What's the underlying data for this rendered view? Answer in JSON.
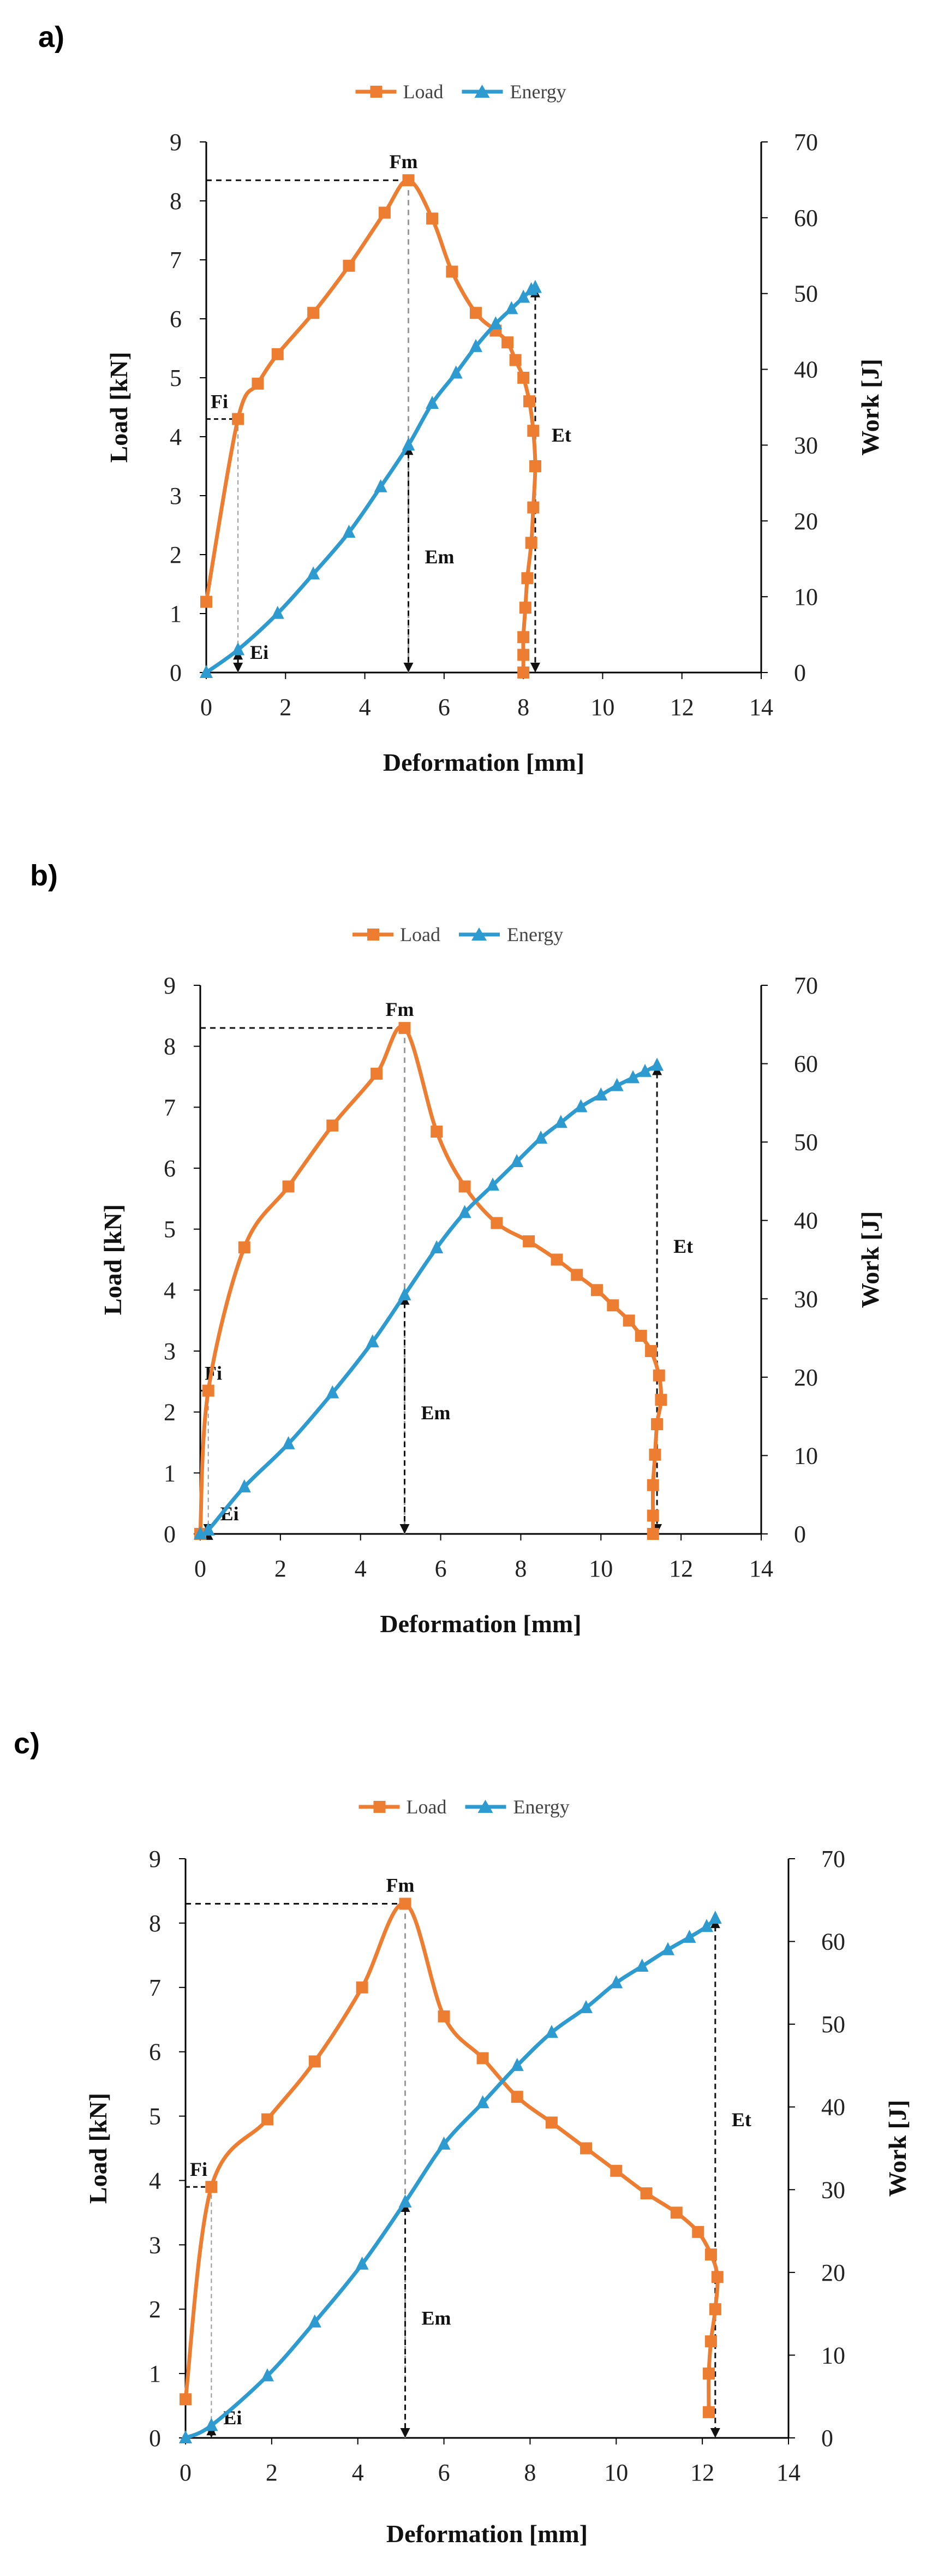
{
  "colors": {
    "load": "#ED7D31",
    "energy": "#2E9BD0",
    "axis": "#000000",
    "guide": "#111111",
    "guide_fm": "#999999"
  },
  "chart_data": [
    {
      "panel": "a)",
      "type": "line",
      "legend": [
        "Load",
        "Energy"
      ],
      "legend_position": "top-center",
      "xlabel": "Deformation [mm]",
      "ylabel": "Load [kN]",
      "y2label": "Work [J]",
      "xlim": [
        0,
        14
      ],
      "xticks": [
        "0",
        "2",
        "4",
        "6",
        "8",
        "10",
        "12",
        "14"
      ],
      "ylim": [
        0,
        9
      ],
      "yticks": [
        "0",
        "1",
        "2",
        "3",
        "4",
        "5",
        "6",
        "7",
        "8",
        "9"
      ],
      "y2lim": [
        0,
        70
      ],
      "y2ticks": [
        "0",
        "10",
        "20",
        "30",
        "40",
        "50",
        "60",
        "70"
      ],
      "series": [
        {
          "name": "Load",
          "axis": "left",
          "marker": "square",
          "x": [
            0,
            0.8,
            1.3,
            1.8,
            2.7,
            3.6,
            4.5,
            5.1,
            5.7,
            6.2,
            6.8,
            7.3,
            7.6,
            7.8,
            8.0,
            8.15,
            8.25,
            8.3,
            8.25,
            8.2,
            8.1,
            8.05,
            8.0,
            8.0,
            8.0
          ],
          "y": [
            1.2,
            4.3,
            4.9,
            5.4,
            6.1,
            6.9,
            7.8,
            8.35,
            7.7,
            6.8,
            6.1,
            5.8,
            5.6,
            5.3,
            5.0,
            4.6,
            4.1,
            3.5,
            2.8,
            2.2,
            1.6,
            1.1,
            0.6,
            0.3,
            0.0
          ]
        },
        {
          "name": "Energy",
          "axis": "right",
          "marker": "triangle",
          "x": [
            0,
            0.8,
            1.8,
            2.7,
            3.6,
            4.4,
            5.1,
            5.7,
            6.3,
            6.8,
            7.3,
            7.7,
            8.0,
            8.2,
            8.3
          ],
          "y": [
            0,
            3,
            7.8,
            13,
            18.5,
            24.5,
            30,
            35.5,
            39.5,
            43,
            46,
            48,
            49.5,
            50.5,
            50.8
          ]
        }
      ],
      "annotations": [
        {
          "text": "Fm",
          "x": 5.1,
          "y": 8.35,
          "axis": "left"
        },
        {
          "text": "Fi",
          "x": 0.8,
          "y": 4.3,
          "axis": "left"
        },
        {
          "text": "Ei",
          "x": 0.8,
          "y": 3,
          "axis": "right"
        },
        {
          "text": "Em",
          "x": 5.1,
          "y": 30,
          "axis": "right"
        },
        {
          "text": "Et",
          "x": 8.3,
          "y": 50.8,
          "axis": "right"
        }
      ]
    },
    {
      "panel": "b)",
      "type": "line",
      "legend": [
        "Load",
        "Energy"
      ],
      "legend_position": "top-center",
      "xlabel": "Deformation [mm]",
      "ylabel": "Load [kN]",
      "y2label": "Work [J]",
      "xlim": [
        0,
        14
      ],
      "xticks": [
        "0",
        "2",
        "4",
        "6",
        "8",
        "10",
        "12",
        "14"
      ],
      "ylim": [
        0,
        9
      ],
      "yticks": [
        "0",
        "1",
        "2",
        "3",
        "4",
        "5",
        "6",
        "7",
        "8",
        "9"
      ],
      "y2lim": [
        0,
        70
      ],
      "y2ticks": [
        "0",
        "10",
        "20",
        "30",
        "40",
        "50",
        "60",
        "70"
      ],
      "series": [
        {
          "name": "Load",
          "axis": "left",
          "marker": "square",
          "x": [
            0,
            0.2,
            1.1,
            2.2,
            3.3,
            4.4,
            5.1,
            5.9,
            6.6,
            7.4,
            8.2,
            8.9,
            9.4,
            9.9,
            10.3,
            10.7,
            11.0,
            11.25,
            11.45,
            11.5,
            11.4,
            11.35,
            11.3,
            11.3,
            11.3
          ],
          "y": [
            0,
            2.35,
            4.7,
            5.7,
            6.7,
            7.55,
            8.3,
            6.6,
            5.7,
            5.1,
            4.8,
            4.5,
            4.25,
            4.0,
            3.75,
            3.5,
            3.25,
            3.0,
            2.6,
            2.2,
            1.8,
            1.3,
            0.8,
            0.3,
            0.0
          ]
        },
        {
          "name": "Energy",
          "axis": "right",
          "marker": "triangle",
          "x": [
            0,
            0.2,
            1.1,
            2.2,
            3.3,
            4.3,
            5.1,
            5.9,
            6.6,
            7.3,
            7.9,
            8.5,
            9.0,
            9.5,
            10.0,
            10.4,
            10.8,
            11.1,
            11.4
          ],
          "y": [
            0,
            0.5,
            6,
            11.5,
            18,
            24.5,
            30.5,
            36.5,
            41,
            44.5,
            47.5,
            50.5,
            52.5,
            54.5,
            56,
            57.2,
            58.2,
            59,
            59.8
          ]
        }
      ],
      "annotations": [
        {
          "text": "Fm",
          "x": 5.1,
          "y": 8.3,
          "axis": "left"
        },
        {
          "text": "Fi",
          "x": 0.2,
          "y": 2.35,
          "axis": "left"
        },
        {
          "text": "Ei",
          "x": 0.2,
          "y": 0.5,
          "axis": "right"
        },
        {
          "text": "Em",
          "x": 5.1,
          "y": 30.5,
          "axis": "right"
        },
        {
          "text": "Et",
          "x": 11.4,
          "y": 59.8,
          "axis": "right"
        }
      ]
    },
    {
      "panel": "c)",
      "type": "line",
      "legend": [
        "Load",
        "Energy"
      ],
      "legend_position": "top-center",
      "xlabel": "Deformation [mm]",
      "ylabel": "Load [kN]",
      "y2label": "Work [J]",
      "xlim": [
        0,
        14
      ],
      "xticks": [
        "0",
        "2",
        "4",
        "6",
        "8",
        "10",
        "12",
        "14"
      ],
      "ylim": [
        0,
        9
      ],
      "yticks": [
        "0",
        "1",
        "2",
        "3",
        "4",
        "5",
        "6",
        "7",
        "8",
        "9"
      ],
      "y2lim": [
        0,
        70
      ],
      "y2ticks": [
        "0",
        "10",
        "20",
        "30",
        "40",
        "50",
        "60",
        "70"
      ],
      "series": [
        {
          "name": "Load",
          "axis": "left",
          "marker": "square",
          "x": [
            0,
            0.6,
            1.9,
            3.0,
            4.1,
            5.1,
            6.0,
            6.9,
            7.7,
            8.5,
            9.3,
            10.0,
            10.7,
            11.4,
            11.9,
            12.2,
            12.35,
            12.3,
            12.2,
            12.15,
            12.15
          ],
          "y": [
            0.6,
            3.9,
            4.95,
            5.85,
            7.0,
            8.3,
            6.55,
            5.9,
            5.3,
            4.9,
            4.5,
            4.15,
            3.8,
            3.5,
            3.2,
            2.85,
            2.5,
            2.0,
            1.5,
            1.0,
            0.4
          ]
        },
        {
          "name": "Energy",
          "axis": "right",
          "marker": "triangle",
          "x": [
            0,
            0.6,
            1.9,
            3.0,
            4.1,
            5.1,
            6.0,
            6.9,
            7.7,
            8.5,
            9.3,
            10.0,
            10.6,
            11.2,
            11.7,
            12.1,
            12.3
          ],
          "y": [
            0,
            1.5,
            7.5,
            14,
            21,
            28.5,
            35.5,
            40.5,
            45,
            49,
            52,
            55,
            57,
            59,
            60.5,
            61.8,
            62.8
          ]
        }
      ],
      "annotations": [
        {
          "text": "Fm",
          "x": 5.1,
          "y": 8.3,
          "axis": "left"
        },
        {
          "text": "Fi",
          "x": 0.6,
          "y": 3.9,
          "axis": "left"
        },
        {
          "text": "Ei",
          "x": 0.6,
          "y": 1.5,
          "axis": "right"
        },
        {
          "text": "Em",
          "x": 5.1,
          "y": 28.5,
          "axis": "right"
        },
        {
          "text": "Et",
          "x": 12.3,
          "y": 62.8,
          "axis": "right"
        }
      ]
    }
  ]
}
